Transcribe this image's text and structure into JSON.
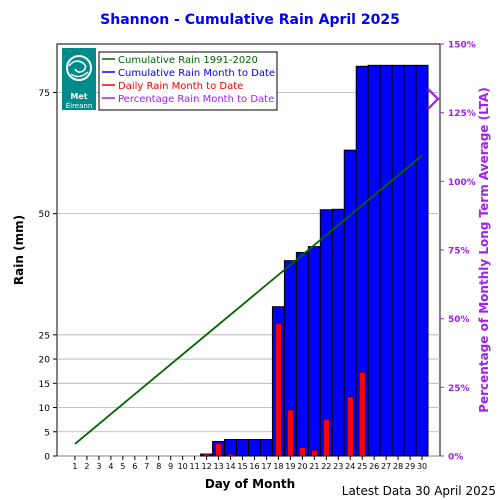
{
  "chart_data": {
    "type": "bar",
    "title": "Shannon - Cumulative Rain April   2025",
    "xlabel": "Day of Month",
    "ylabel": "Rain (mm)",
    "y2label": "Percentage  of Monthly Long Term Average (LTA)",
    "footer": "Latest Data 30 April 2025",
    "days": [
      1,
      2,
      3,
      4,
      5,
      6,
      7,
      8,
      9,
      10,
      11,
      12,
      13,
      14,
      15,
      16,
      17,
      18,
      19,
      20,
      21,
      22,
      23,
      24,
      25,
      26,
      27,
      28,
      29,
      30
    ],
    "ylim": [
      0,
      85
    ],
    "y_ticks": [
      0,
      5,
      10,
      15,
      20,
      25,
      50,
      75
    ],
    "y2lim": [
      0,
      150
    ],
    "y2_ticks": [
      "0%",
      "25%",
      "50%",
      "75%",
      "100%",
      "125%",
      "150%"
    ],
    "y2_tick_values": [
      0,
      25,
      50,
      75,
      100,
      125,
      150
    ],
    "grid": true,
    "legend_position": "top-left",
    "series": [
      {
        "name": "Cumulative Rain 1991-2020",
        "kind": "line",
        "color": "#006400",
        "start": [
          1,
          2.5
        ],
        "end": [
          30,
          62.0
        ]
      },
      {
        "name": "Cumulative Rain Month to Date",
        "kind": "bar",
        "color": "#0000ff",
        "values": [
          0,
          0,
          0,
          0,
          0,
          0,
          0,
          0,
          0,
          0,
          0,
          0.4,
          3.0,
          3.4,
          3.4,
          3.4,
          3.4,
          30.8,
          40.3,
          42.0,
          43.2,
          50.8,
          50.9,
          63.1,
          80.4,
          80.6,
          80.6,
          80.6,
          80.6,
          80.6
        ]
      },
      {
        "name": "Daily Rain Month to Date",
        "kind": "bar",
        "color": "#ff0000",
        "values": [
          0,
          0,
          0,
          0,
          0,
          0,
          0,
          0,
          0,
          0,
          0,
          0.4,
          2.6,
          0.4,
          0,
          0,
          0,
          27.4,
          9.5,
          1.7,
          1.2,
          7.6,
          0.1,
          12.2,
          17.3,
          0.2,
          0,
          0,
          0,
          0
        ]
      },
      {
        "name": "Percentage Rain Month to Date",
        "kind": "marker",
        "color": "#a020f0",
        "value": 130
      }
    ]
  },
  "logo": {
    "line1": "Met",
    "line2": "Éireann",
    "bg_color": "#008b8b"
  }
}
